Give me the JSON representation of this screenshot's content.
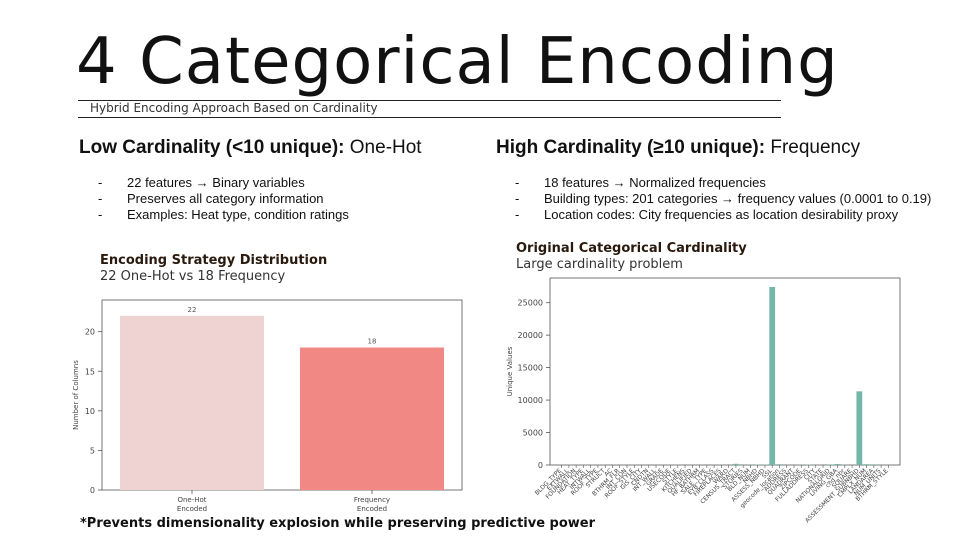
{
  "slide": {
    "title": "4 Categorical Encoding",
    "subtitle": "Hybrid Encoding Approach Based on Cardinality",
    "footnote": "*Prevents dimensionality explosion while preserving predictive power"
  },
  "left": {
    "heading_bold": "Low Cardinality (<10 unique):",
    "heading_rest": " One-Hot",
    "bullets": [
      "22 features → Binary variables",
      "Preserves all category information",
      "Examples: Heat type, condition ratings"
    ]
  },
  "right": {
    "heading_bold": "High Cardinality (≥10 unique):",
    "heading_rest": " Frequency",
    "bullets": [
      "18 features → Normalized frequencies",
      "Building types: 201 categories → frequency values (0.0001 to 0.19)",
      "Location codes: City frequencies as location desirability proxy"
    ]
  },
  "chart_data": [
    {
      "type": "bar",
      "title": "Encoding Strategy Distribution",
      "subtitle": "22 One-Hot vs 18 Frequency",
      "categories": [
        "One-Hot\nEncoded",
        "Frequency\nEncoded"
      ],
      "values": [
        22,
        18
      ],
      "data_labels": [
        "22",
        "18"
      ],
      "ylabel": "Number of Columns",
      "xlabel": "",
      "ylim": [
        0,
        24
      ],
      "yticks": [
        0,
        5,
        10,
        15,
        20
      ],
      "colors": [
        "#efd3d3",
        "#f28884"
      ],
      "grid": false
    },
    {
      "type": "bar",
      "title": "Original Categorical Cardinality",
      "subtitle": "Large cardinality problem",
      "ylabel": "Unique Values",
      "xlabel": "",
      "ylim": [
        0,
        28800
      ],
      "yticks": [
        0,
        5000,
        10000,
        15000,
        20000,
        25000
      ],
      "color": "#74b7aa",
      "grid": false,
      "categories": [
        "BLDG_TYPE",
        "EXTWALL",
        "FOUNDATION",
        "HEAT_TYPE",
        "INTWALL",
        "ROOF_TYPE",
        "STRUCT",
        "AC",
        "BTHRM_FLR",
        "INT_CON",
        "ROOF_STYLE",
        "GIS_CITY",
        "CNDTN",
        "INT_WALL",
        "GRADE",
        "USECODE",
        "STYLE",
        "KITCHENS",
        "QUALIFIED",
        "HF_BATHRM",
        "SALE_TYPE",
        "EYB_CLASS",
        "FIREPLACES",
        "WARD",
        "CENSUS_TRACT",
        "STORIES",
        "BLD_NUM",
        "NBHD",
        "ASSESS_NBHD",
        "SSL",
        "geocode_location",
        "ADDRESS",
        "QUADRANT",
        "ZIPCODE",
        "FULLADDRESS",
        "CITY",
        "STATE",
        "NATIONALGRID",
        "LIVING_GBA",
        "cnd_nbr",
        "SQUARE",
        "ASSESSMENT_SUBNBHD",
        "CMPLX_NUM",
        "LANDAREA",
        "NUM_UNITS",
        "BTHRM_STYLE"
      ],
      "values": [
        12,
        20,
        6,
        14,
        11,
        15,
        9,
        2,
        4,
        9,
        15,
        5,
        6,
        11,
        12,
        8,
        19,
        4,
        2,
        5,
        4,
        7,
        13,
        8,
        180,
        12,
        30,
        56,
        56,
        27420,
        120,
        10,
        4,
        27,
        60,
        20,
        3,
        90,
        150,
        30,
        10,
        11350,
        120,
        100,
        13,
        9
      ]
    }
  ]
}
